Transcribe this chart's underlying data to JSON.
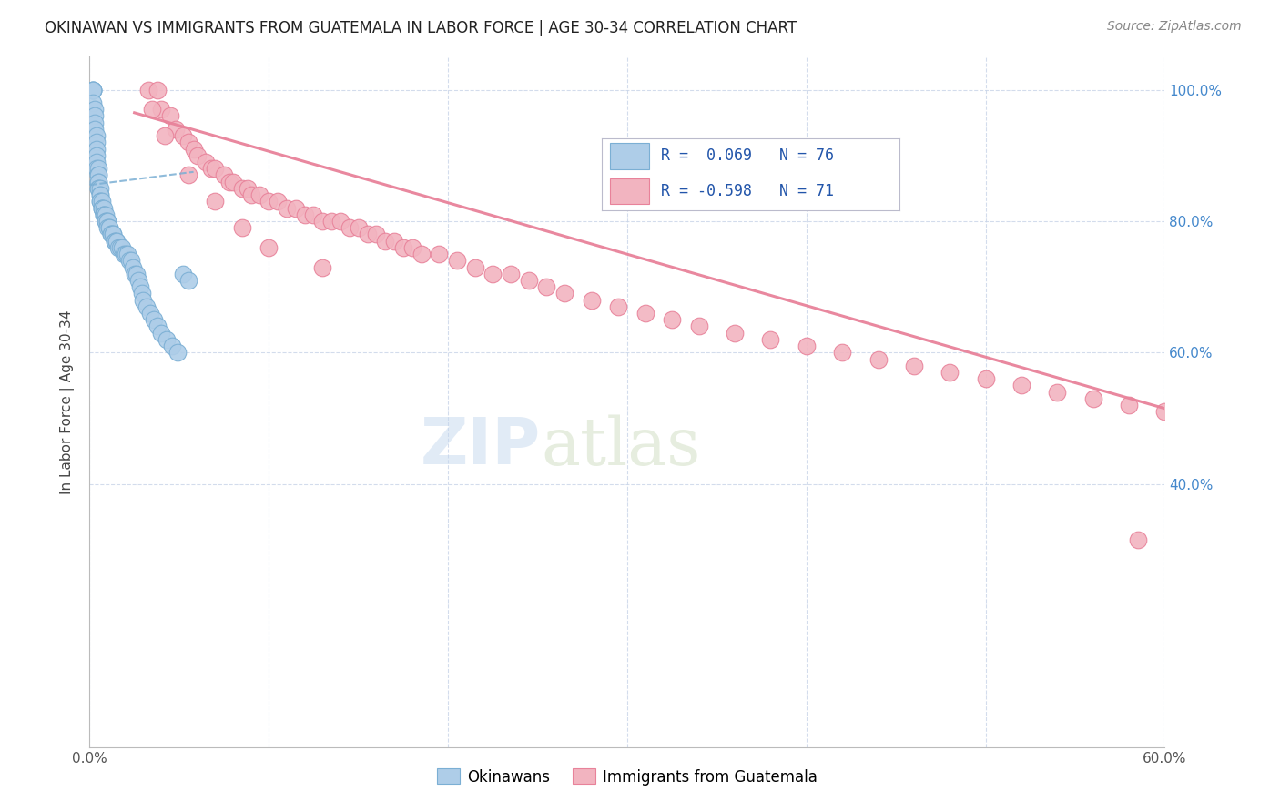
{
  "title": "OKINAWAN VS IMMIGRANTS FROM GUATEMALA IN LABOR FORCE | AGE 30-34 CORRELATION CHART",
  "source": "Source: ZipAtlas.com",
  "ylabel_left": "In Labor Force | Age 30-34",
  "x_min": 0.0,
  "x_max": 0.6,
  "y_min": 0.0,
  "y_max": 1.05,
  "x_tick_vals": [
    0.0,
    0.1,
    0.2,
    0.3,
    0.4,
    0.5,
    0.6
  ],
  "x_tick_labels": [
    "0.0%",
    "",
    "",
    "",
    "",
    "",
    "60.0%"
  ],
  "y_tick_vals": [
    0.4,
    0.6,
    0.8,
    1.0
  ],
  "y_tick_labels": [
    "40.0%",
    "60.0%",
    "80.0%",
    "100.0%"
  ],
  "okinawan_color": "#7bafd4",
  "okinawan_face": "#aecde8",
  "guatemala_color": "#e8829a",
  "guatemala_face": "#f2b4c0",
  "watermark": "ZIPatlas",
  "okinawan_R": 0.069,
  "okinawan_N": 76,
  "guatemala_R": -0.598,
  "guatemala_N": 71,
  "ok_x": [
    0.002,
    0.002,
    0.002,
    0.002,
    0.002,
    0.003,
    0.003,
    0.003,
    0.003,
    0.004,
    0.004,
    0.004,
    0.004,
    0.004,
    0.004,
    0.005,
    0.005,
    0.005,
    0.005,
    0.005,
    0.005,
    0.005,
    0.006,
    0.006,
    0.006,
    0.006,
    0.006,
    0.007,
    0.007,
    0.007,
    0.007,
    0.008,
    0.008,
    0.008,
    0.008,
    0.009,
    0.009,
    0.009,
    0.01,
    0.01,
    0.01,
    0.011,
    0.011,
    0.012,
    0.012,
    0.013,
    0.013,
    0.014,
    0.014,
    0.015,
    0.015,
    0.016,
    0.017,
    0.018,
    0.019,
    0.02,
    0.021,
    0.022,
    0.023,
    0.024,
    0.025,
    0.026,
    0.027,
    0.028,
    0.029,
    0.03,
    0.032,
    0.034,
    0.036,
    0.038,
    0.04,
    0.043,
    0.046,
    0.049,
    0.052,
    0.055
  ],
  "ok_y": [
    1.0,
    1.0,
    1.0,
    1.0,
    0.98,
    0.97,
    0.96,
    0.95,
    0.94,
    0.93,
    0.92,
    0.91,
    0.9,
    0.89,
    0.88,
    0.88,
    0.87,
    0.87,
    0.86,
    0.86,
    0.85,
    0.85,
    0.85,
    0.84,
    0.84,
    0.83,
    0.83,
    0.83,
    0.82,
    0.82,
    0.82,
    0.82,
    0.81,
    0.81,
    0.81,
    0.81,
    0.8,
    0.8,
    0.8,
    0.8,
    0.79,
    0.79,
    0.79,
    0.78,
    0.78,
    0.78,
    0.78,
    0.77,
    0.77,
    0.77,
    0.77,
    0.76,
    0.76,
    0.76,
    0.75,
    0.75,
    0.75,
    0.74,
    0.74,
    0.73,
    0.72,
    0.72,
    0.71,
    0.7,
    0.69,
    0.68,
    0.67,
    0.66,
    0.65,
    0.64,
    0.63,
    0.62,
    0.61,
    0.6,
    0.72,
    0.71
  ],
  "gt_x": [
    0.033,
    0.038,
    0.04,
    0.045,
    0.048,
    0.052,
    0.055,
    0.058,
    0.06,
    0.065,
    0.068,
    0.07,
    0.075,
    0.078,
    0.08,
    0.085,
    0.088,
    0.09,
    0.095,
    0.1,
    0.105,
    0.11,
    0.115,
    0.12,
    0.125,
    0.13,
    0.135,
    0.14,
    0.145,
    0.15,
    0.155,
    0.16,
    0.165,
    0.17,
    0.175,
    0.18,
    0.185,
    0.195,
    0.205,
    0.215,
    0.225,
    0.235,
    0.245,
    0.255,
    0.265,
    0.28,
    0.295,
    0.31,
    0.325,
    0.34,
    0.36,
    0.38,
    0.4,
    0.42,
    0.44,
    0.46,
    0.48,
    0.5,
    0.52,
    0.54,
    0.56,
    0.58,
    0.6,
    0.035,
    0.042,
    0.055,
    0.07,
    0.085,
    0.1,
    0.13,
    0.585
  ],
  "gt_y": [
    1.0,
    1.0,
    0.97,
    0.96,
    0.94,
    0.93,
    0.92,
    0.91,
    0.9,
    0.89,
    0.88,
    0.88,
    0.87,
    0.86,
    0.86,
    0.85,
    0.85,
    0.84,
    0.84,
    0.83,
    0.83,
    0.82,
    0.82,
    0.81,
    0.81,
    0.8,
    0.8,
    0.8,
    0.79,
    0.79,
    0.78,
    0.78,
    0.77,
    0.77,
    0.76,
    0.76,
    0.75,
    0.75,
    0.74,
    0.73,
    0.72,
    0.72,
    0.71,
    0.7,
    0.69,
    0.68,
    0.67,
    0.66,
    0.65,
    0.64,
    0.63,
    0.62,
    0.61,
    0.6,
    0.59,
    0.58,
    0.57,
    0.56,
    0.55,
    0.54,
    0.53,
    0.52,
    0.51,
    0.97,
    0.93,
    0.87,
    0.83,
    0.79,
    0.76,
    0.73,
    0.315
  ],
  "ok_line_x": [
    0.0,
    0.058
  ],
  "ok_line_y": [
    0.855,
    0.875
  ],
  "gt_line_x": [
    0.025,
    0.6
  ],
  "gt_line_y": [
    0.965,
    0.515
  ]
}
